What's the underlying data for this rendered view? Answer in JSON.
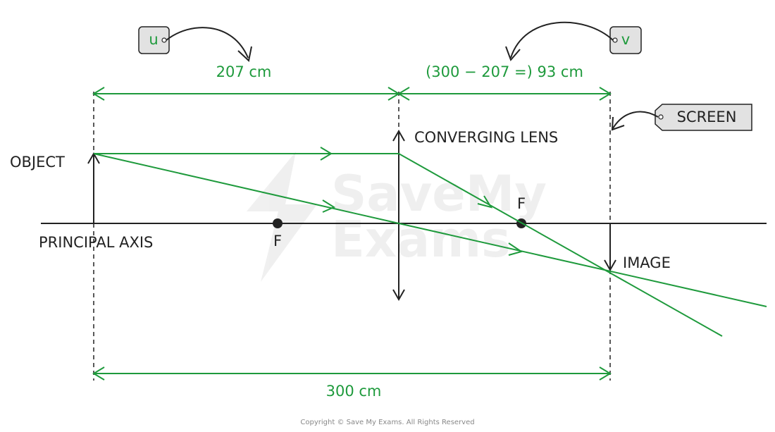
{
  "labels": {
    "u": "u",
    "v": "v",
    "u_distance": "207 cm",
    "v_distance": "(300 − 207 =) 93 cm",
    "total_distance": "300 cm",
    "screen": "SCREEN",
    "lens": "CONVERGING LENS",
    "object": "OBJECT",
    "principal_axis": "PRINCIPAL AXIS",
    "image": "IMAGE",
    "focal_point_left": "F",
    "focal_point_right": "F"
  },
  "watermark": {
    "line1": "SaveMy",
    "line2": "Exams"
  },
  "copyright": "Copyright © Save My Exams. All Rights Reserved"
}
